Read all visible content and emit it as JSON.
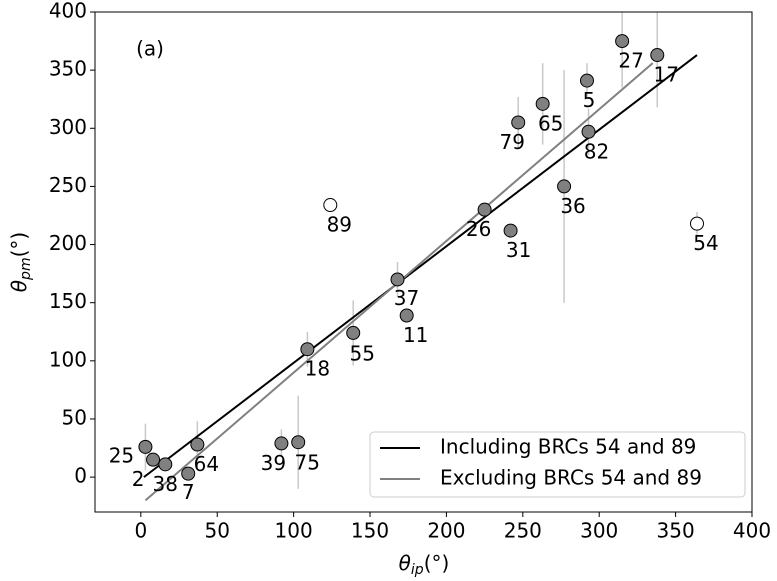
{
  "chart_data": {
    "type": "scatter",
    "panel_label": "(a)",
    "x_label": {
      "symbol": "θ",
      "subscript": "ip",
      "unit": "(°)"
    },
    "y_label": {
      "symbol": "θ",
      "subscript": "pm",
      "unit": "(°)"
    },
    "xlim": [
      -30,
      400
    ],
    "ylim": [
      -30,
      400
    ],
    "xticks": [
      0,
      50,
      100,
      150,
      200,
      250,
      300,
      350,
      400
    ],
    "yticks": [
      0,
      50,
      100,
      150,
      200,
      250,
      300,
      350,
      400
    ],
    "points": {
      "labels": [
        "25",
        "2",
        "38",
        "7",
        "64",
        "39",
        "75",
        "18",
        "55",
        "37",
        "11",
        "89",
        "26",
        "31",
        "79",
        "65",
        "36",
        "5",
        "82",
        "27",
        "17",
        "54"
      ],
      "x": [
        3,
        8,
        16,
        31,
        37,
        92,
        103,
        109,
        139,
        168,
        174,
        124,
        225,
        242,
        247,
        263,
        277,
        292,
        293,
        315,
        338,
        364
      ],
      "values": [
        26,
        15,
        11,
        3,
        28,
        29,
        30,
        110,
        124,
        170,
        139,
        234,
        230,
        212,
        305,
        321,
        250,
        341,
        297,
        375,
        363,
        218
      ],
      "errors": [
        20,
        5,
        5,
        5,
        20,
        12,
        40,
        15,
        28,
        15,
        5,
        5,
        5,
        5,
        22,
        35,
        100,
        15,
        20,
        40,
        45,
        10
      ],
      "fill_colors": [
        "#808080",
        "#808080",
        "#808080",
        "#808080",
        "#808080",
        "#808080",
        "#808080",
        "#808080",
        "#808080",
        "#808080",
        "#808080",
        "#ffffff",
        "#808080",
        "#808080",
        "#808080",
        "#808080",
        "#808080",
        "#808080",
        "#808080",
        "#808080",
        "#808080",
        "#ffffff"
      ],
      "error_color": "#c8c8c8"
    },
    "series": [
      {
        "name": "Including BRCs 54 and 89",
        "color": "#000000",
        "x": [
          2,
          364
        ],
        "values": [
          0,
          363
        ]
      },
      {
        "name": "Excluding BRCs 54 and 89",
        "color": "#808080",
        "x": [
          3,
          335
        ],
        "values": [
          -20,
          356
        ]
      }
    ],
    "legend": "lower right"
  }
}
